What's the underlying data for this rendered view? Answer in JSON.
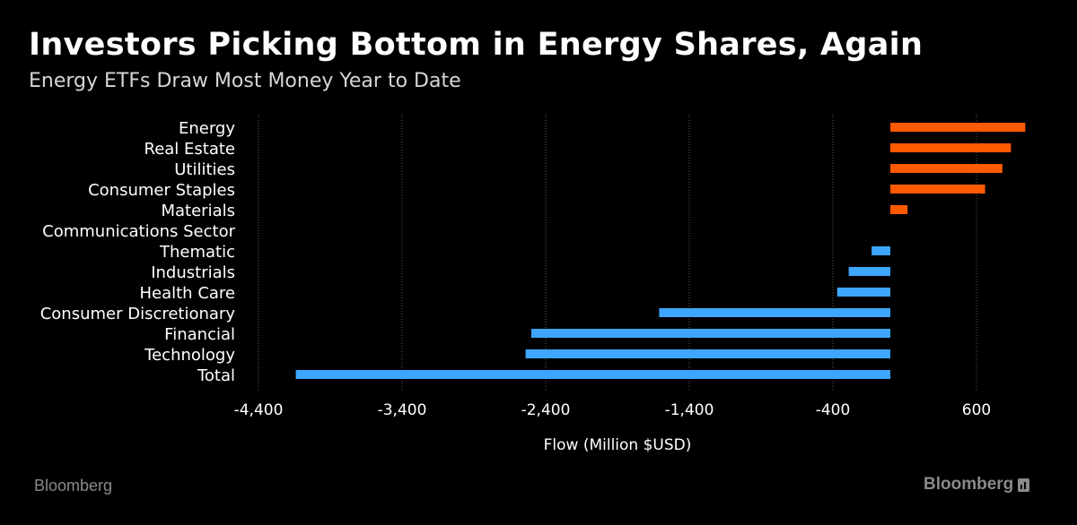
{
  "header": {
    "title": "Investors Picking Bottom in Energy Shares, Again",
    "subtitle": "Energy ETFs Draw Most Money Year to Date"
  },
  "footer": {
    "source": "Bloomberg",
    "brand": "Bloomberg"
  },
  "colors": {
    "positive": "#ff5a00",
    "negative": "#3ea6ff",
    "grid": "#5a5a5a",
    "text": "#ffffff"
  },
  "chart_data": {
    "type": "bar",
    "orientation": "horizontal",
    "title": "Investors Picking Bottom in Energy Shares, Again",
    "subtitle": "Energy ETFs Draw Most Money Year to Date",
    "xlabel": "Flow (Million $USD)",
    "ylabel": "",
    "xlim": [
      -4400,
      1100
    ],
    "xticks": [
      -4400,
      -3400,
      -2400,
      -1400,
      -400,
      600
    ],
    "xtick_labels": [
      "-4,400",
      "-3,400",
      "-2,400",
      "-1,400",
      "-400",
      "600"
    ],
    "grid": true,
    "legend": false,
    "categories": [
      "Energy",
      "Real Estate",
      "Utilities",
      "Consumer Staples",
      "Materials",
      "Communications Sector",
      "Thematic",
      "Industrials",
      "Health Care",
      "Consumer Discretionary",
      "Financial",
      "Technology",
      "Total"
    ],
    "values": [
      940,
      840,
      780,
      660,
      120,
      0,
      -130,
      -290,
      -370,
      -1610,
      -2500,
      -2540,
      -4140
    ]
  }
}
